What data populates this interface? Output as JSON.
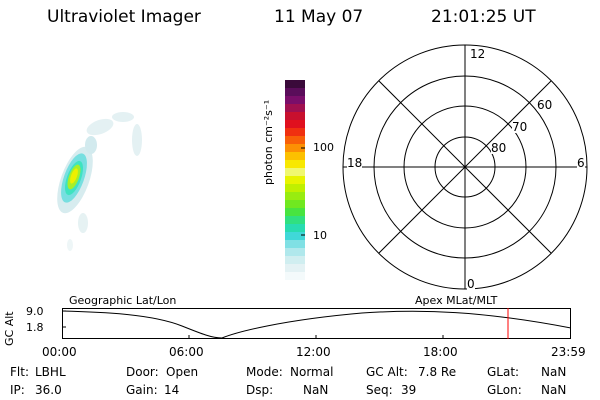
{
  "header": {
    "title": "Ultraviolet Imager",
    "date": "11 May 07",
    "time": "21:01:25 UT"
  },
  "colorbar": {
    "unit_label": "photon cm⁻²s⁻¹",
    "ticks": [
      "100",
      "10"
    ]
  },
  "polar": {
    "mlt_labels": [
      "12",
      "18",
      "6",
      "0"
    ],
    "lat_labels": [
      "60",
      "70",
      "80"
    ]
  },
  "altitude_plot": {
    "axis_title": "GC Alt",
    "y_ticks": [
      "9.0",
      "1.8"
    ],
    "left_label": "Geographic Lat/Lon",
    "right_label": "Apex MLat/MLT",
    "x_ticks": [
      "00:00",
      "06:00",
      "12:00",
      "18:00",
      "23:59"
    ],
    "marker_time": "21:01:25"
  },
  "status": {
    "row1": [
      {
        "label": "Flt:",
        "value": "LBHL"
      },
      {
        "label": "Door:",
        "value": "Open"
      },
      {
        "label": "Mode:",
        "value": "Normal"
      },
      {
        "label": "GC Alt:",
        "value": "7.8 Re"
      },
      {
        "label": "GLat:",
        "value": "NaN"
      }
    ],
    "row2": [
      {
        "label": "IP:",
        "value": "36.0"
      },
      {
        "label": "Gain:",
        "value": "14"
      },
      {
        "label": "Dsp:",
        "value": "NaN"
      },
      {
        "label": "Seq:",
        "value": "39"
      },
      {
        "label": "GLon:",
        "value": "NaN"
      }
    ]
  },
  "colors": {
    "marker": "#ff0000",
    "line": "#000000"
  }
}
